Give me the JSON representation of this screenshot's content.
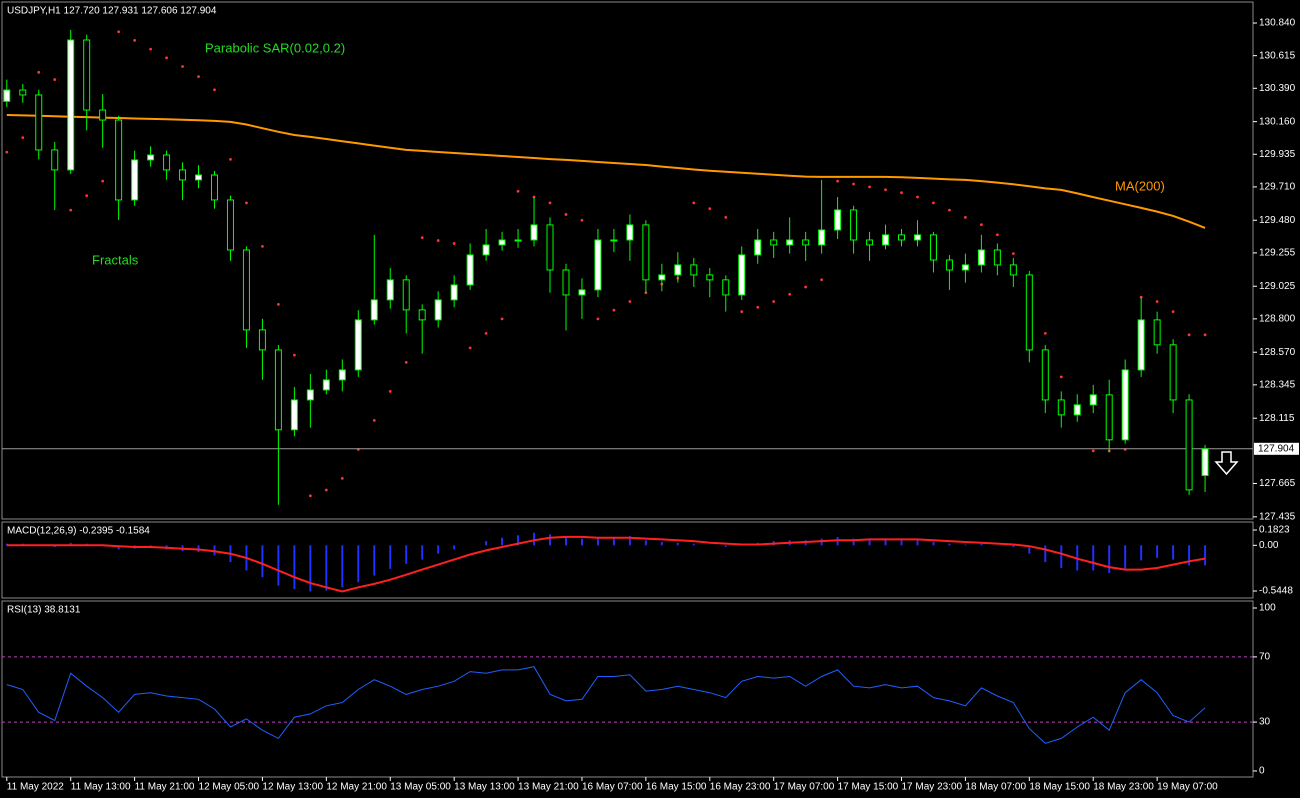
{
  "chart_data": [
    {
      "type": "candlestick",
      "title": "USDJPY,H1  127.720 127.931 127.606 127.904",
      "xlim": [
        -0.3,
        78
      ],
      "ylim": [
        127.42,
        130.985
      ],
      "yticks": [
        {
          "value": 130.84,
          "label": "130.840"
        },
        130.615,
        {
          "value": 130.39,
          "label": "130.390"
        },
        {
          "value": 130.16,
          "label": "130.160"
        },
        129.935,
        {
          "value": 129.71,
          "label": "129.710"
        },
        {
          "value": 129.48,
          "label": "129.480"
        },
        129.255,
        129.025,
        {
          "value": 128.8,
          "label": "128.800"
        },
        {
          "value": 128.57,
          "label": "128.570"
        },
        128.345,
        128.115,
        127.665,
        127.435
      ],
      "candle_color": "#00ff00",
      "bull_color": "#ffffff",
      "bear_color": "#000000",
      "current_price": 127.904,
      "open": [
        130.3,
        130.378,
        130.344,
        129.965,
        129.827,
        130.723,
        130.24,
        130.171,
        129.62,
        129.896,
        129.93,
        129.827,
        129.758,
        129.792,
        129.62,
        129.275,
        128.724,
        128.586,
        128.035,
        128.241,
        128.31,
        128.379,
        128.448,
        128.793,
        128.931,
        129.069,
        128.862,
        128.793,
        128.931,
        129.034,
        129.241,
        129.31,
        129.344,
        129.344,
        129.448,
        129.137,
        128.965,
        129.0,
        129.344,
        129.344,
        129.448,
        129.069,
        129.103,
        129.172,
        129.103,
        129.069,
        128.965,
        129.241,
        129.344,
        129.31,
        129.344,
        129.31,
        129.413,
        129.551,
        129.344,
        129.31,
        129.379,
        129.344,
        129.379,
        129.206,
        129.137,
        129.172,
        129.275,
        129.172,
        129.103,
        128.586,
        128.241,
        128.138,
        128.207,
        128.276,
        127.966,
        128.448,
        128.793,
        128.621,
        128.241,
        127.72
      ],
      "high": [
        130.45,
        130.42,
        130.38,
        130.02,
        130.792,
        130.76,
        130.35,
        130.2,
        129.96,
        129.99,
        129.96,
        129.88,
        129.86,
        129.82,
        129.65,
        129.3,
        128.8,
        128.62,
        128.33,
        128.42,
        128.45,
        128.52,
        128.86,
        129.379,
        129.15,
        129.1,
        128.9,
        128.99,
        129.1,
        129.32,
        129.42,
        129.4,
        129.42,
        129.64,
        129.5,
        129.18,
        129.08,
        129.42,
        129.42,
        129.52,
        129.48,
        129.18,
        129.26,
        129.22,
        129.15,
        129.1,
        129.3,
        129.42,
        129.4,
        129.5,
        129.4,
        129.758,
        129.64,
        129.58,
        129.4,
        129.45,
        129.42,
        129.48,
        129.4,
        129.24,
        129.25,
        129.38,
        129.32,
        129.22,
        129.13,
        128.62,
        128.3,
        128.28,
        128.345,
        128.38,
        128.52,
        128.95,
        128.85,
        128.66,
        128.28,
        127.931
      ],
      "low": [
        130.26,
        130.29,
        129.9,
        129.551,
        129.8,
        130.1,
        129.98,
        129.482,
        129.58,
        129.85,
        129.76,
        129.62,
        129.7,
        129.56,
        129.2,
        128.6,
        128.38,
        127.518,
        127.99,
        128.05,
        128.28,
        128.3,
        128.4,
        128.76,
        128.87,
        128.7,
        128.56,
        128.74,
        128.88,
        129.0,
        129.2,
        129.27,
        129.29,
        129.3,
        128.98,
        128.72,
        128.8,
        128.95,
        129.26,
        129.2,
        128.98,
        128.99,
        129.05,
        129.02,
        128.95,
        128.85,
        128.93,
        129.18,
        129.22,
        129.25,
        129.2,
        129.25,
        129.35,
        129.25,
        129.2,
        129.28,
        129.3,
        129.3,
        129.12,
        129.0,
        129.05,
        129.12,
        129.1,
        129.02,
        128.5,
        128.15,
        128.05,
        128.09,
        128.15,
        127.88,
        127.94,
        128.4,
        128.56,
        128.15,
        127.586,
        127.606
      ],
      "close": [
        130.378,
        130.344,
        129.965,
        129.827,
        130.723,
        130.24,
        130.171,
        129.62,
        129.896,
        129.93,
        129.827,
        129.758,
        129.792,
        129.62,
        129.275,
        128.724,
        128.586,
        128.035,
        128.241,
        128.31,
        128.379,
        128.448,
        128.793,
        128.931,
        129.069,
        128.862,
        128.793,
        128.931,
        129.034,
        129.241,
        129.31,
        129.344,
        129.344,
        129.448,
        129.137,
        128.965,
        129.0,
        129.344,
        129.344,
        129.448,
        129.069,
        129.103,
        129.172,
        129.103,
        129.069,
        128.965,
        129.241,
        129.344,
        129.31,
        129.344,
        129.31,
        129.413,
        129.551,
        129.344,
        129.31,
        129.379,
        129.344,
        129.379,
        129.206,
        129.137,
        129.172,
        129.275,
        129.172,
        129.103,
        128.586,
        128.241,
        128.138,
        128.207,
        128.276,
        127.966,
        128.448,
        128.793,
        128.621,
        128.241,
        127.621,
        127.904
      ],
      "series": [
        {
          "name": "MA(200)",
          "color": "#ff9900",
          "style": "line",
          "values": [
            130.206,
            130.203,
            130.2,
            130.197,
            130.194,
            130.191,
            130.188,
            130.185,
            130.182,
            130.179,
            130.176,
            130.173,
            130.17,
            130.165,
            130.158,
            130.14,
            130.115,
            130.09,
            130.068,
            130.055,
            130.04,
            130.025,
            130.01,
            129.995,
            129.98,
            129.965,
            129.958,
            129.951,
            129.944,
            129.937,
            129.93,
            129.923,
            129.916,
            129.909,
            129.902,
            129.896,
            129.889,
            129.882,
            129.875,
            129.868,
            129.861,
            129.85,
            129.84,
            129.83,
            129.822,
            129.815,
            129.808,
            129.801,
            129.794,
            129.787,
            129.781,
            129.779,
            129.779,
            129.779,
            129.779,
            129.779,
            129.777,
            129.772,
            129.767,
            129.762,
            129.758,
            129.75,
            129.74,
            129.728,
            129.715,
            129.7,
            129.689,
            129.665,
            129.64,
            129.615,
            129.59,
            129.565,
            129.54,
            129.51,
            129.47,
            129.427
          ]
        },
        {
          "name": "Parabolic SAR(0.02,0.2)",
          "color": "#ff3333",
          "style": "dots",
          "values": [
            129.95,
            130.05,
            130.5,
            130.45,
            129.55,
            129.65,
            129.75,
            130.78,
            130.72,
            130.66,
            130.6,
            130.54,
            130.47,
            130.38,
            129.9,
            129.6,
            129.3,
            128.9,
            128.55,
            127.58,
            127.62,
            127.7,
            127.9,
            128.1,
            128.3,
            128.5,
            129.36,
            129.34,
            129.32,
            128.6,
            128.7,
            128.8,
            129.68,
            129.64,
            129.6,
            129.52,
            129.48,
            128.8,
            128.86,
            128.92,
            128.98,
            129.04,
            129.08,
            129.6,
            129.56,
            129.5,
            128.85,
            128.88,
            128.92,
            128.97,
            129.02,
            129.07,
            129.75,
            129.73,
            129.71,
            129.69,
            129.67,
            129.64,
            129.6,
            129.55,
            129.5,
            129.45,
            129.38,
            129.25,
            129.05,
            128.7,
            128.4,
            128.2,
            127.89,
            127.89,
            127.9,
            128.95,
            128.92,
            128.85,
            128.69,
            128.69
          ]
        }
      ],
      "annotations": [
        "Fractals"
      ]
    },
    {
      "type": "macd",
      "title": "MACD(12,26,9) -0.2395 -0.1584",
      "xlim": [
        -0.3,
        78
      ],
      "ylim": [
        -0.628,
        0.278
      ],
      "yticks": [
        0.1823,
        {
          "value": 0,
          "label": "0.00"
        },
        -0.5448
      ],
      "series": [
        {
          "color": "#2030ff",
          "style": "histogram",
          "values": [
            0.02,
            0.02,
            0.0,
            -0.02,
            0.03,
            0.02,
            0.0,
            -0.05,
            -0.04,
            -0.03,
            -0.05,
            -0.07,
            -0.08,
            -0.12,
            -0.2,
            -0.3,
            -0.38,
            -0.48,
            -0.52,
            -0.55,
            -0.54,
            -0.5,
            -0.44,
            -0.36,
            -0.28,
            -0.22,
            -0.17,
            -0.1,
            -0.05,
            0.0,
            0.05,
            0.09,
            0.12,
            0.15,
            0.13,
            0.1,
            0.08,
            0.09,
            0.1,
            0.11,
            0.06,
            0.04,
            0.03,
            0.02,
            0.0,
            -0.02,
            0.0,
            0.03,
            0.05,
            0.06,
            0.06,
            0.08,
            0.1,
            0.08,
            0.07,
            0.07,
            0.06,
            0.06,
            0.04,
            0.02,
            0.01,
            0.02,
            0.0,
            -0.02,
            -0.1,
            -0.2,
            -0.27,
            -0.3,
            -0.3,
            -0.33,
            -0.28,
            -0.18,
            -0.15,
            -0.17,
            -0.24,
            -0.2395
          ]
        },
        {
          "color": "#ff2020",
          "style": "line",
          "values": [
            0.0,
            0.0,
            0.0,
            0.0,
            0.0,
            0.0,
            0.0,
            -0.01,
            -0.02,
            -0.02,
            -0.03,
            -0.04,
            -0.05,
            -0.07,
            -0.1,
            -0.15,
            -0.22,
            -0.3,
            -0.38,
            -0.45,
            -0.5,
            -0.55,
            -0.5,
            -0.46,
            -0.41,
            -0.35,
            -0.29,
            -0.23,
            -0.17,
            -0.11,
            -0.06,
            -0.02,
            0.02,
            0.06,
            0.09,
            0.1,
            0.1,
            0.09,
            0.09,
            0.09,
            0.08,
            0.07,
            0.06,
            0.05,
            0.03,
            0.02,
            0.01,
            0.01,
            0.02,
            0.03,
            0.04,
            0.05,
            0.06,
            0.06,
            0.07,
            0.07,
            0.07,
            0.07,
            0.06,
            0.05,
            0.04,
            0.03,
            0.02,
            0.01,
            -0.01,
            -0.05,
            -0.1,
            -0.16,
            -0.21,
            -0.26,
            -0.29,
            -0.29,
            -0.27,
            -0.23,
            -0.19,
            -0.1584
          ]
        }
      ]
    },
    {
      "type": "rsi",
      "title": "RSI(13) 38.8131",
      "xlim": [
        -0.3,
        78
      ],
      "ylim": [
        -3.7,
        104.3
      ],
      "yticks": [
        100,
        70,
        30,
        0
      ],
      "levels": [
        70,
        30
      ],
      "level_color": "#c040c0",
      "color": "#2060ff",
      "values": [
        53,
        50,
        36,
        31,
        60,
        52,
        45,
        36,
        47,
        48,
        46,
        45,
        44,
        38,
        27,
        32,
        25,
        20,
        33,
        35,
        40,
        42,
        50,
        56,
        52,
        47,
        50,
        52,
        55,
        61,
        60,
        62,
        62,
        64,
        47,
        43,
        44,
        58,
        58,
        59,
        49,
        50,
        52,
        50,
        48,
        45,
        55,
        58,
        57,
        58,
        52,
        58,
        62,
        52,
        51,
        53,
        51,
        52,
        45,
        43,
        40,
        51,
        46,
        42,
        26,
        17,
        20,
        27,
        33,
        25,
        48,
        56,
        48,
        34,
        30,
        38.8131
      ],
      "xticks": [
        {
          "value": 0,
          "label": "11 May 2022"
        },
        {
          "value": 4,
          "label": "11 May 13:00"
        },
        {
          "value": 8,
          "label": "11 May 21:00"
        },
        {
          "value": 12,
          "label": "12 May 05:00"
        },
        {
          "value": 16,
          "label": "12 May 13:00"
        },
        {
          "value": 20,
          "label": "12 May 21:00"
        },
        {
          "value": 24,
          "label": "13 May 05:00"
        },
        {
          "value": 28,
          "label": "13 May 13:00"
        },
        {
          "value": 32,
          "label": "13 May 21:00"
        },
        {
          "value": 36,
          "label": "16 May 07:00"
        },
        {
          "value": 40,
          "label": "16 May 15:00"
        },
        {
          "value": 44,
          "label": "16 May 23:00"
        },
        {
          "value": 48,
          "label": "17 May 07:00"
        },
        {
          "value": 52,
          "label": "17 May 15:00"
        },
        {
          "value": 56,
          "label": "17 May 23:00"
        },
        {
          "value": 60,
          "label": "18 May 07:00"
        },
        {
          "value": 64,
          "label": "18 May 15:00"
        },
        {
          "value": 68,
          "label": "18 May 23:00"
        },
        {
          "value": 72,
          "label": "19 May 07:00"
        }
      ]
    }
  ]
}
